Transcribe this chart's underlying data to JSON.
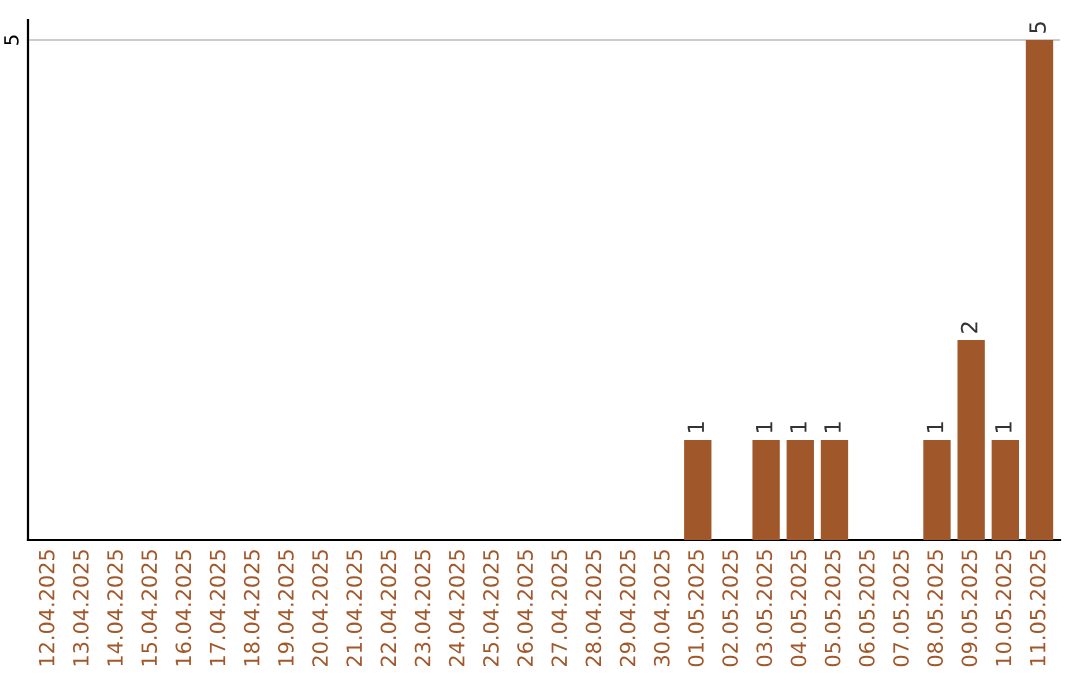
{
  "chart_data": {
    "type": "bar",
    "categories": [
      "12.04.2025",
      "13.04.2025",
      "14.04.2025",
      "15.04.2025",
      "16.04.2025",
      "17.04.2025",
      "18.04.2025",
      "19.04.2025",
      "20.04.2025",
      "21.04.2025",
      "22.04.2025",
      "23.04.2025",
      "24.04.2025",
      "25.04.2025",
      "26.04.2025",
      "27.04.2025",
      "28.04.2025",
      "29.04.2025",
      "30.04.2025",
      "01.05.2025",
      "02.05.2025",
      "03.05.2025",
      "04.05.2025",
      "05.05.2025",
      "06.05.2025",
      "07.05.2025",
      "08.05.2025",
      "09.05.2025",
      "10.05.2025",
      "11.05.2025"
    ],
    "values": [
      null,
      null,
      null,
      null,
      null,
      null,
      null,
      null,
      null,
      null,
      null,
      null,
      null,
      null,
      null,
      null,
      null,
      null,
      null,
      1,
      null,
      1,
      1,
      1,
      null,
      null,
      1,
      2,
      1,
      5
    ],
    "color": "#a0572a",
    "ylim": [
      0,
      5.2
    ],
    "yticks": [
      5
    ],
    "grid": "y",
    "data_labels": true
  }
}
